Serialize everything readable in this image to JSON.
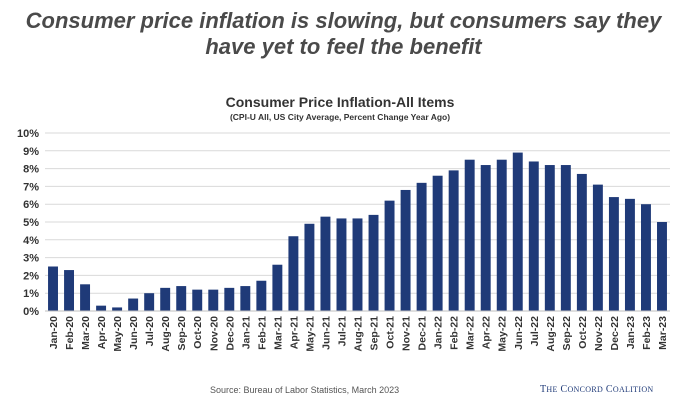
{
  "headline": {
    "line1": "Consumer price inflation is slowing, but consumers say they",
    "line2": "have yet to feel the benefit"
  },
  "chart_data": {
    "type": "bar",
    "title": "Consumer Price Inflation-All Items",
    "subtitle": "(CPI-U All, US City Average, Percent Change Year Ago)",
    "xlabel": "",
    "ylabel": "",
    "ylim": [
      0,
      10
    ],
    "y_ticks": [
      "0%",
      "1%",
      "2%",
      "3%",
      "4%",
      "5%",
      "6%",
      "7%",
      "8%",
      "9%",
      "10%"
    ],
    "grid": true,
    "legend": "none",
    "bar_color": "#1f3a78",
    "categories": [
      "Jan-20",
      "Feb-20",
      "Mar-20",
      "Apr-20",
      "May-20",
      "Jun-20",
      "Jul-20",
      "Aug-20",
      "Sep-20",
      "Oct-20",
      "Nov-20",
      "Dec-20",
      "Jan-21",
      "Feb-21",
      "Mar-21",
      "Apr-21",
      "May-21",
      "Jun-21",
      "Jul-21",
      "Aug-21",
      "Sep-21",
      "Oct-21",
      "Nov-21",
      "Dec-21",
      "Jan-22",
      "Feb-22",
      "Mar-22",
      "Apr-22",
      "May-22",
      "Jun-22",
      "Jul-22",
      "Aug-22",
      "Sep-22",
      "Oct-22",
      "Nov-22",
      "Dec-22",
      "Jan-23",
      "Feb-23",
      "Mar-23"
    ],
    "values": [
      2.5,
      2.3,
      1.5,
      0.3,
      0.2,
      0.7,
      1.0,
      1.3,
      1.4,
      1.2,
      1.2,
      1.3,
      1.4,
      1.7,
      2.6,
      4.2,
      4.9,
      5.3,
      5.2,
      5.2,
      5.4,
      6.2,
      6.8,
      7.2,
      7.6,
      7.9,
      8.5,
      8.2,
      8.5,
      8.9,
      8.4,
      8.2,
      8.2,
      7.7,
      7.1,
      6.4,
      6.3,
      6.0,
      5.0
    ]
  },
  "footer": {
    "source": "Source: Bureau of Labor Statistics, March 2023",
    "logo": {
      "the": "T",
      "the_rest": "HE",
      "concord_c": "C",
      "concord_rest": "ONCORD",
      "coalition_c": "C",
      "coalition_rest": "OALITION"
    }
  }
}
